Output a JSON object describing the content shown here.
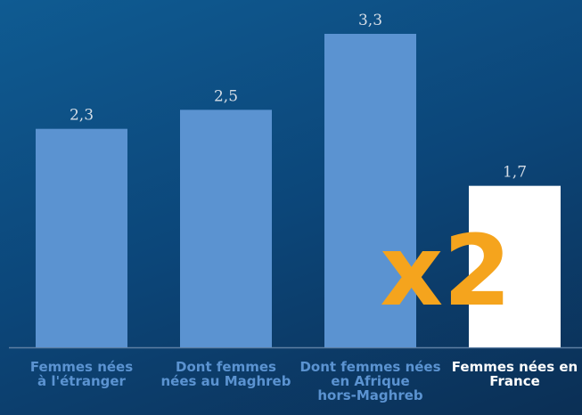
{
  "chart_data": {
    "type": "bar",
    "categories": [
      "Femmes nées\nà l'étranger",
      "Dont femmes\nnées au Maghreb",
      "Dont femmes nées\nen Afrique\nhors-Maghreb",
      "Femmes nées en\nFrance"
    ],
    "values": [
      2.3,
      2.5,
      3.3,
      1.7
    ],
    "value_labels": [
      "2,3",
      "2,5",
      "3,3",
      "1,7"
    ],
    "colors": [
      "#5b93d1",
      "#5b93d1",
      "#5b93d1",
      "#ffffff"
    ],
    "annotation": "x2",
    "annotation_color": "#f5a41d"
  }
}
